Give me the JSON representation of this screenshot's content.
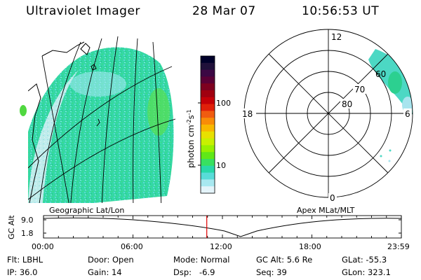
{
  "header": {
    "instrument": "Ultraviolet Imager",
    "date": "28 Mar 07",
    "time": "10:56:53 UT"
  },
  "colorbar": {
    "unit_label": "photon cm",
    "unit_exp1": "-2",
    "unit_s": "s",
    "unit_exp2": "-1",
    "ticks": [
      "100",
      "10"
    ],
    "colors": [
      "#00002a",
      "#20103a",
      "#3c0844",
      "#5a0036",
      "#7e0020",
      "#a00010",
      "#c40008",
      "#e0200a",
      "#f05c10",
      "#f88c08",
      "#f8b800",
      "#e8e000",
      "#c8f000",
      "#98f000",
      "#60e818",
      "#38e060",
      "#28d8a8",
      "#58dcd8",
      "#a8e8f0",
      "#e4f4fa"
    ]
  },
  "labels": {
    "geographic": "Geographic Lat/Lon",
    "apex": "Apex MLat/MLT",
    "gc_alt_axis": "GC Alt",
    "alt_ticks": [
      "9.0",
      "1.8"
    ]
  },
  "polar": {
    "mlt": [
      "12",
      "18",
      "6",
      "0"
    ],
    "mlat": [
      "60",
      "70",
      "80"
    ]
  },
  "timeline": {
    "ticks": [
      "00:00",
      "06:00",
      "12:00",
      "18:00",
      "23:59"
    ],
    "current_hour": 10.95
  },
  "info": {
    "filter": "Flt: LBHL",
    "ip": "IP: 36.0",
    "door": "Door: Open",
    "gain": "Gain: 14",
    "mode": "Mode: Normal",
    "dsp": "Dsp:   -6.9",
    "gc_alt": "GC Alt: 5.6 Re",
    "seq": "Seq: 39",
    "glat": "GLat: -55.3",
    "glon": "GLon: 323.1"
  }
}
